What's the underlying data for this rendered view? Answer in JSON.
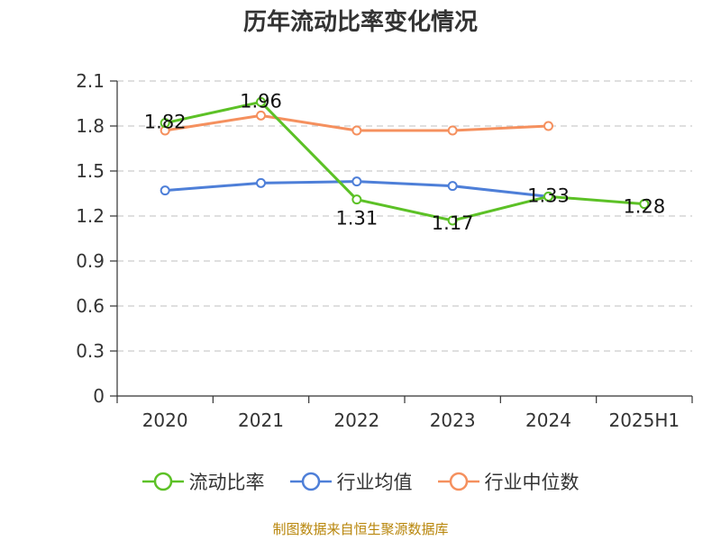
{
  "chart_data": {
    "type": "line",
    "title": "历年流动比率变化情况",
    "categories": [
      "2020",
      "2021",
      "2022",
      "2023",
      "2024",
      "2025H1"
    ],
    "ylim": [
      0,
      2.1
    ],
    "yticks": [
      "0",
      "0.3",
      "0.6",
      "0.9",
      "1.2",
      "1.5",
      "1.8",
      "2.1"
    ],
    "grid": true,
    "legend_position": "bottom",
    "series": [
      {
        "name": "流动比率",
        "color": "#5cc126",
        "values": [
          1.82,
          1.96,
          1.31,
          1.17,
          1.33,
          1.28
        ],
        "labels": [
          "1.82",
          "1.96",
          "1.31",
          "1.17",
          "1.33",
          "1.28"
        ]
      },
      {
        "name": "行业均值",
        "color": "#4e7fd8",
        "values": [
          1.37,
          1.42,
          1.43,
          1.4,
          1.33,
          null
        ]
      },
      {
        "name": "行业中位数",
        "color": "#f5905e",
        "values": [
          1.77,
          1.87,
          1.77,
          1.77,
          1.8,
          null
        ]
      }
    ]
  },
  "source": "制图数据来自恒生聚源数据库"
}
